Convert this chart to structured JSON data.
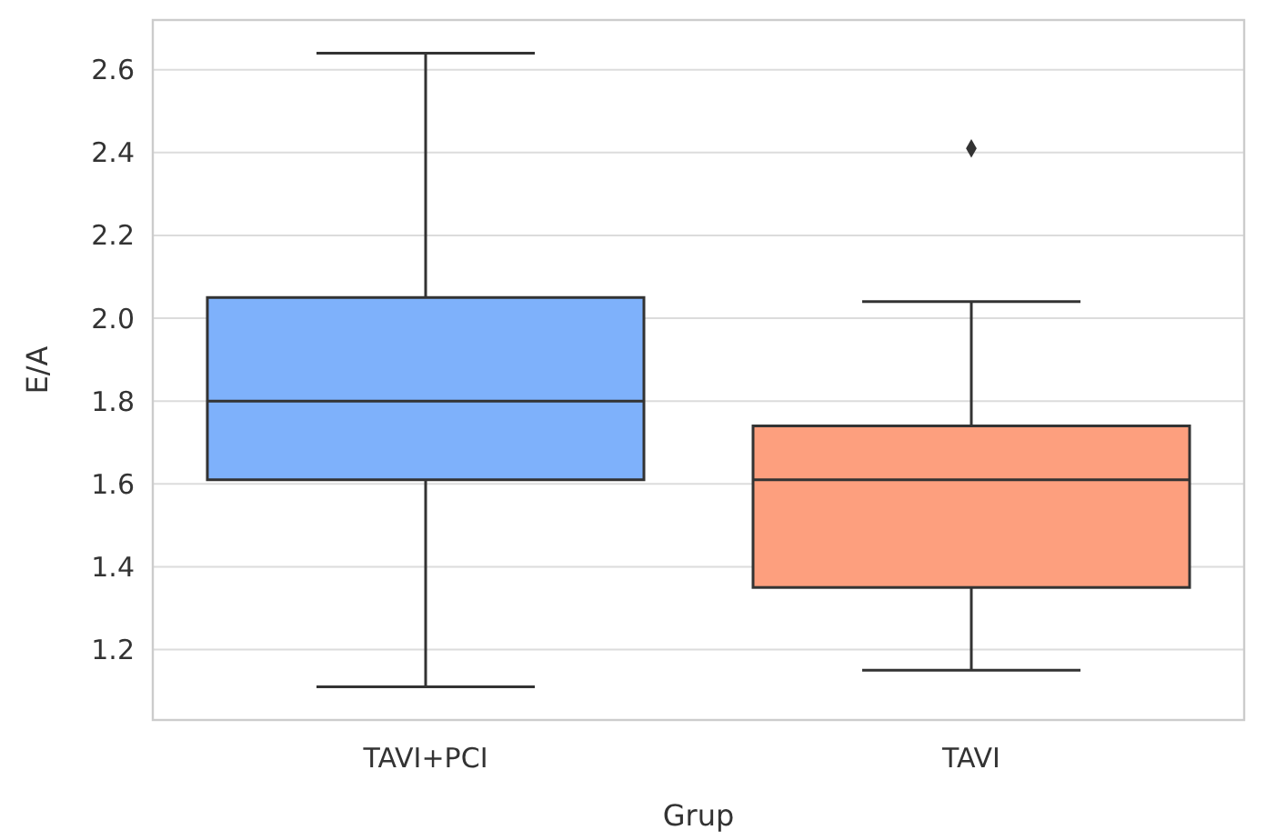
{
  "chart_data": {
    "type": "box",
    "xlabel": "Grup",
    "ylabel": "E/A",
    "categories": [
      "TAVI+PCI",
      "TAVI"
    ],
    "colors": [
      "#7eb1fb",
      "#fd9f7e"
    ],
    "boxes": [
      {
        "low": 1.11,
        "q1": 1.61,
        "median": 1.8,
        "q3": 2.05,
        "high": 2.64
      },
      {
        "low": 1.15,
        "q1": 1.35,
        "median": 1.61,
        "q3": 1.74,
        "high": 2.04,
        "outliers": [
          2.41
        ]
      }
    ],
    "ylim": [
      1.03,
      2.72
    ],
    "yticks": [
      1.2,
      1.4,
      1.6,
      1.8,
      {
        "value": 2,
        "label": "2.0"
      },
      2.2,
      2.4,
      2.6
    ],
    "grid": "y"
  }
}
